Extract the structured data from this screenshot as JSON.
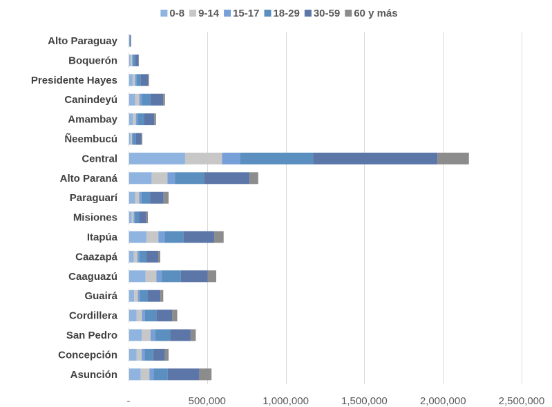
{
  "chart_data": {
    "type": "bar",
    "orientation": "horizontal",
    "stacked": true,
    "categories": [
      "Alto Paraguay",
      "Boquerón",
      "Presidente Hayes",
      "Canindeyú",
      "Amambay",
      "Ñeembucú",
      "Central",
      "Alto Paraná",
      "Paraguarí",
      "Misiones",
      "Itapúa",
      "Caazapá",
      "Caaguazú",
      "Guairá",
      "Cordillera",
      "San Pedro",
      "Concepción",
      "Asunción"
    ],
    "series": [
      {
        "name": "0-8",
        "color": "#8fb4e0",
        "values": [
          3000,
          14000,
          27000,
          42000,
          28000,
          13000,
          360000,
          148000,
          42000,
          20000,
          115000,
          34000,
          108000,
          36000,
          52000,
          85000,
          52000,
          78000
        ]
      },
      {
        "name": "9-14",
        "color": "#c7c7c7",
        "values": [
          2000,
          9000,
          15000,
          27000,
          19000,
          9000,
          235000,
          100000,
          26000,
          13000,
          75000,
          23000,
          70000,
          24000,
          34000,
          55000,
          32000,
          55000
        ]
      },
      {
        "name": "15-17",
        "color": "#779fd8",
        "values": [
          1000,
          5000,
          9000,
          16000,
          11000,
          5000,
          115000,
          47000,
          15000,
          7000,
          40000,
          12000,
          35000,
          13000,
          19000,
          30000,
          18000,
          27000
        ]
      },
      {
        "name": "18-29",
        "color": "#5b8fbf",
        "values": [
          4000,
          15000,
          28000,
          55000,
          40000,
          20000,
          465000,
          185000,
          55000,
          28000,
          120000,
          45000,
          120000,
          50000,
          72000,
          95000,
          55000,
          90000
        ]
      },
      {
        "name": "30-59",
        "color": "#5c76a8",
        "values": [
          6000,
          20000,
          45000,
          80000,
          65000,
          35000,
          790000,
          290000,
          85000,
          45000,
          195000,
          75000,
          170000,
          80000,
          100000,
          130000,
          75000,
          200000
        ]
      },
      {
        "name": "60 y más",
        "color": "#8c8c8c",
        "values": [
          1000,
          3000,
          7000,
          12000,
          12000,
          6000,
          200000,
          55000,
          32000,
          10000,
          60000,
          13000,
          55000,
          18000,
          33000,
          33000,
          23000,
          78000
        ]
      }
    ],
    "xlim": [
      0,
      2500000
    ],
    "xticks": [
      0,
      500000,
      1000000,
      1500000,
      2000000,
      2500000
    ],
    "xtick_labels": [
      "-",
      "500,000",
      "1,000,000",
      "1,500,000",
      "2,000,000",
      "2,500,000"
    ],
    "title": "",
    "xlabel": "",
    "ylabel": "",
    "legend_position": "top",
    "grid": "vertical"
  }
}
